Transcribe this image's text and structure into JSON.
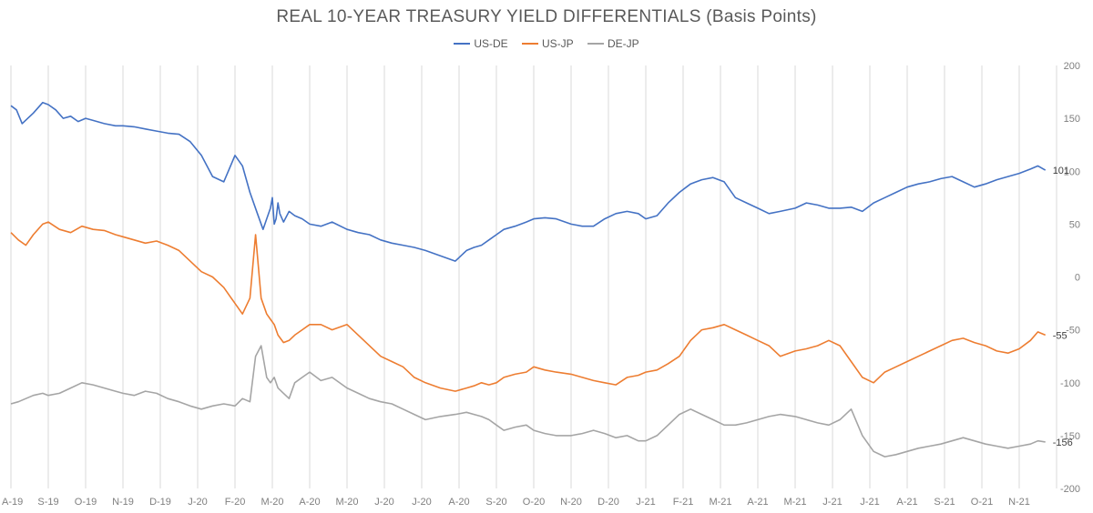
{
  "chart_data": {
    "type": "line",
    "title": "REAL 10-YEAR TREASURY YIELD DIFFERENTIALS (Basis Points)",
    "xlabel": "",
    "ylabel": "",
    "ylim": [
      -200,
      200
    ],
    "yticks": [
      -200,
      -150,
      -100,
      -50,
      0,
      50,
      100,
      150,
      200
    ],
    "ytick_labels": [
      "-200",
      "-150",
      "-100",
      "-50",
      "0",
      "50",
      "100",
      "150",
      "200"
    ],
    "y_axis_side": "right",
    "grid": "vertical",
    "legend_position": "top-center",
    "xtick_labels": [
      "A-19",
      "S-19",
      "O-19",
      "N-19",
      "D-19",
      "J-20",
      "F-20",
      "M-20",
      "A-20",
      "M-20",
      "J-20",
      "J-20",
      "A-20",
      "S-20",
      "O-20",
      "N-20",
      "D-20",
      "J-21",
      "F-21",
      "M-21",
      "A-21",
      "M-21",
      "J-21",
      "J-21",
      "A-21",
      "S-21",
      "O-21",
      "N-21"
    ],
    "xlim": [
      0,
      28
    ],
    "series": [
      {
        "name": "US-DE",
        "color": "#4472c4",
        "end_label": "101",
        "x": [
          0,
          0.15,
          0.3,
          0.45,
          0.6,
          0.85,
          1.0,
          1.2,
          1.4,
          1.6,
          1.8,
          2.0,
          2.2,
          2.5,
          2.8,
          3.0,
          3.3,
          3.6,
          3.9,
          4.2,
          4.5,
          4.8,
          5.1,
          5.4,
          5.7,
          6.0,
          6.2,
          6.4,
          6.6,
          6.75,
          6.85,
          6.95,
          7.0,
          7.05,
          7.1,
          7.15,
          7.2,
          7.3,
          7.45,
          7.6,
          7.8,
          8.0,
          8.3,
          8.6,
          9.0,
          9.3,
          9.6,
          9.9,
          10.2,
          10.5,
          10.8,
          11.1,
          11.5,
          11.9,
          12.2,
          12.4,
          12.6,
          12.8,
          13.0,
          13.2,
          13.5,
          13.8,
          14.0,
          14.3,
          14.6,
          15.0,
          15.3,
          15.6,
          15.9,
          16.2,
          16.5,
          16.8,
          17.0,
          17.3,
          17.6,
          17.9,
          18.2,
          18.5,
          18.8,
          19.1,
          19.4,
          19.7,
          20.0,
          20.3,
          20.6,
          21.0,
          21.3,
          21.6,
          21.9,
          22.2,
          22.5,
          22.8,
          23.1,
          23.4,
          23.7,
          24.0,
          24.3,
          24.6,
          24.9,
          25.2,
          25.5,
          25.8,
          26.1,
          26.4,
          26.7,
          27.0,
          27.3,
          27.5,
          27.7
        ],
        "values": [
          162,
          158,
          145,
          150,
          155,
          165,
          163,
          158,
          150,
          152,
          147,
          150,
          148,
          145,
          143,
          143,
          142,
          140,
          138,
          136,
          135,
          128,
          115,
          95,
          90,
          115,
          105,
          80,
          60,
          45,
          55,
          65,
          75,
          50,
          55,
          70,
          60,
          52,
          62,
          58,
          55,
          50,
          48,
          52,
          45,
          42,
          40,
          35,
          32,
          30,
          28,
          25,
          20,
          15,
          25,
          28,
          30,
          35,
          40,
          45,
          48,
          52,
          55,
          56,
          55,
          50,
          48,
          48,
          55,
          60,
          62,
          60,
          55,
          58,
          70,
          80,
          88,
          92,
          94,
          90,
          75,
          70,
          65,
          60,
          62,
          65,
          70,
          68,
          65,
          65,
          66,
          62,
          70,
          75,
          80,
          85,
          88,
          90,
          93,
          95,
          90,
          85,
          88,
          92,
          95,
          98,
          102,
          105,
          101
        ]
      },
      {
        "name": "US-JP",
        "color": "#ed7d31",
        "end_label": "-55",
        "x": [
          0,
          0.2,
          0.4,
          0.6,
          0.85,
          1.0,
          1.3,
          1.6,
          1.9,
          2.2,
          2.5,
          2.8,
          3.0,
          3.3,
          3.6,
          3.9,
          4.2,
          4.5,
          4.8,
          5.1,
          5.4,
          5.7,
          6.0,
          6.2,
          6.4,
          6.55,
          6.7,
          6.85,
          6.95,
          7.05,
          7.15,
          7.3,
          7.45,
          7.6,
          7.8,
          8.0,
          8.3,
          8.6,
          9.0,
          9.3,
          9.6,
          9.9,
          10.2,
          10.5,
          10.8,
          11.1,
          11.5,
          11.9,
          12.2,
          12.4,
          12.6,
          12.8,
          13.0,
          13.2,
          13.5,
          13.8,
          14.0,
          14.3,
          14.6,
          15.0,
          15.3,
          15.6,
          15.9,
          16.2,
          16.5,
          16.8,
          17.0,
          17.3,
          17.6,
          17.9,
          18.2,
          18.5,
          18.8,
          19.1,
          19.4,
          19.7,
          20.0,
          20.3,
          20.6,
          21.0,
          21.3,
          21.6,
          21.9,
          22.2,
          22.5,
          22.8,
          23.1,
          23.4,
          23.7,
          24.0,
          24.3,
          24.6,
          24.9,
          25.2,
          25.5,
          25.8,
          26.1,
          26.4,
          26.7,
          27.0,
          27.3,
          27.5,
          27.7
        ],
        "values": [
          42,
          35,
          30,
          40,
          50,
          52,
          45,
          42,
          48,
          45,
          44,
          40,
          38,
          35,
          32,
          34,
          30,
          25,
          15,
          5,
          0,
          -10,
          -25,
          -35,
          -20,
          40,
          -20,
          -35,
          -40,
          -45,
          -55,
          -62,
          -60,
          -55,
          -50,
          -45,
          -45,
          -50,
          -45,
          -55,
          -65,
          -75,
          -80,
          -85,
          -95,
          -100,
          -105,
          -108,
          -105,
          -103,
          -100,
          -102,
          -100,
          -95,
          -92,
          -90,
          -85,
          -88,
          -90,
          -92,
          -95,
          -98,
          -100,
          -102,
          -95,
          -93,
          -90,
          -88,
          -82,
          -75,
          -60,
          -50,
          -48,
          -45,
          -50,
          -55,
          -60,
          -65,
          -75,
          -70,
          -68,
          -65,
          -60,
          -65,
          -80,
          -95,
          -100,
          -90,
          -85,
          -80,
          -75,
          -70,
          -65,
          -60,
          -58,
          -62,
          -65,
          -70,
          -72,
          -68,
          -60,
          -52,
          -55
        ]
      },
      {
        "name": "DE-JP",
        "color": "#a5a5a5",
        "end_label": "-156",
        "x": [
          0,
          0.2,
          0.4,
          0.6,
          0.85,
          1.0,
          1.3,
          1.6,
          1.9,
          2.2,
          2.5,
          2.8,
          3.0,
          3.3,
          3.6,
          3.9,
          4.2,
          4.5,
          4.8,
          5.1,
          5.4,
          5.7,
          6.0,
          6.2,
          6.4,
          6.55,
          6.7,
          6.85,
          6.95,
          7.05,
          7.15,
          7.3,
          7.45,
          7.6,
          7.8,
          8.0,
          8.3,
          8.6,
          9.0,
          9.3,
          9.6,
          9.9,
          10.2,
          10.5,
          10.8,
          11.1,
          11.5,
          11.9,
          12.2,
          12.4,
          12.6,
          12.8,
          13.0,
          13.2,
          13.5,
          13.8,
          14.0,
          14.3,
          14.6,
          15.0,
          15.3,
          15.6,
          15.9,
          16.2,
          16.5,
          16.8,
          17.0,
          17.3,
          17.6,
          17.9,
          18.2,
          18.5,
          18.8,
          19.1,
          19.4,
          19.7,
          20.0,
          20.3,
          20.6,
          21.0,
          21.3,
          21.6,
          21.9,
          22.2,
          22.5,
          22.8,
          23.1,
          23.4,
          23.7,
          24.0,
          24.3,
          24.6,
          24.9,
          25.2,
          25.5,
          25.8,
          26.1,
          26.4,
          26.7,
          27.0,
          27.3,
          27.5,
          27.7
        ],
        "values": [
          -120,
          -118,
          -115,
          -112,
          -110,
          -112,
          -110,
          -105,
          -100,
          -102,
          -105,
          -108,
          -110,
          -112,
          -108,
          -110,
          -115,
          -118,
          -122,
          -125,
          -122,
          -120,
          -122,
          -115,
          -118,
          -75,
          -65,
          -95,
          -100,
          -95,
          -105,
          -110,
          -115,
          -100,
          -95,
          -90,
          -98,
          -95,
          -105,
          -110,
          -115,
          -118,
          -120,
          -125,
          -130,
          -135,
          -132,
          -130,
          -128,
          -130,
          -132,
          -135,
          -140,
          -145,
          -142,
          -140,
          -145,
          -148,
          -150,
          -150,
          -148,
          -145,
          -148,
          -152,
          -150,
          -155,
          -155,
          -150,
          -140,
          -130,
          -125,
          -130,
          -135,
          -140,
          -140,
          -138,
          -135,
          -132,
          -130,
          -132,
          -135,
          -138,
          -140,
          -135,
          -125,
          -150,
          -165,
          -170,
          -168,
          -165,
          -162,
          -160,
          -158,
          -155,
          -152,
          -155,
          -158,
          -160,
          -162,
          -160,
          -158,
          -155,
          -156
        ]
      }
    ]
  }
}
